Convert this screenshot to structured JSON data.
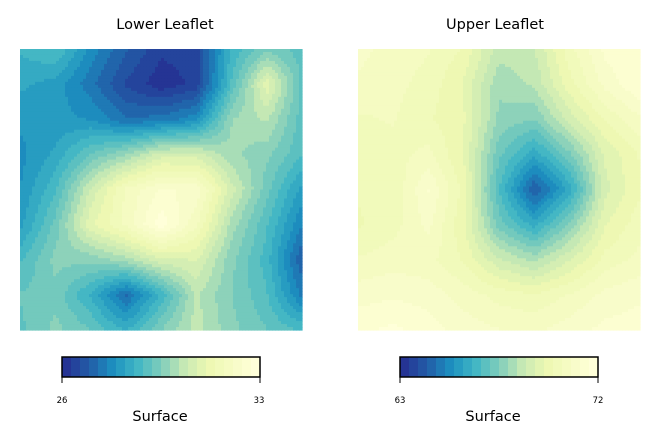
{
  "chart_data": [
    {
      "type": "heatmap",
      "title": "Lower Leaflet",
      "colorbar": {
        "label": "Surface",
        "min": 26,
        "max": 33,
        "tick_labels": [
          "26",
          "33"
        ]
      },
      "colormap": "YlGnBu_r",
      "grid": false,
      "axes_visible": false,
      "z": [
        [
          28.6,
          28.9,
          27.8,
          27.0,
          26.4,
          26.5,
          28.6,
          29.4,
          29.0
        ],
        [
          28.3,
          28.1,
          27.4,
          26.6,
          26.1,
          26.4,
          28.9,
          31.0,
          29.1
        ],
        [
          28.0,
          28.0,
          27.9,
          27.3,
          27.4,
          27.8,
          29.8,
          30.2,
          29.0
        ],
        [
          27.8,
          28.3,
          29.2,
          29.8,
          30.6,
          30.6,
          29.9,
          29.6,
          28.9
        ],
        [
          27.9,
          28.8,
          30.5,
          31.8,
          32.4,
          32.3,
          30.6,
          29.3,
          28.1
        ],
        [
          28.1,
          29.3,
          31.0,
          31.8,
          32.9,
          31.8,
          30.0,
          28.9,
          27.6
        ],
        [
          28.8,
          29.6,
          29.6,
          30.0,
          30.7,
          30.8,
          29.6,
          28.7,
          27.0
        ],
        [
          29.2,
          29.4,
          28.5,
          27.2,
          28.6,
          30.2,
          29.5,
          28.9,
          27.5
        ],
        [
          29.1,
          29.6,
          29.2,
          28.5,
          29.5,
          30.3,
          29.6,
          29.2,
          28.8
        ]
      ]
    },
    {
      "type": "heatmap",
      "title": "Upper Leaflet",
      "colorbar": {
        "label": "Surface",
        "min": 63,
        "max": 72,
        "tick_labels": [
          "63",
          "72"
        ]
      },
      "colormap": "YlGnBu_r",
      "grid": false,
      "axes_visible": false,
      "z": [
        [
          70.9,
          70.6,
          70.4,
          69.9,
          68.5,
          68.7,
          70.2,
          71.3,
          71.6
        ],
        [
          70.7,
          70.5,
          70.2,
          69.5,
          68.0,
          68.4,
          69.8,
          70.9,
          71.6
        ],
        [
          70.3,
          70.4,
          70.0,
          69.6,
          67.8,
          67.5,
          68.9,
          70.0,
          70.7
        ],
        [
          70.2,
          70.2,
          70.5,
          69.5,
          67.2,
          66.0,
          67.4,
          69.2,
          70.0
        ],
        [
          70.0,
          70.0,
          71.2,
          69.8,
          66.7,
          64.2,
          66.0,
          69.0,
          69.9
        ],
        [
          69.9,
          70.2,
          70.9,
          69.6,
          67.3,
          66.1,
          67.6,
          69.5,
          70.2
        ],
        [
          70.4,
          70.6,
          70.5,
          69.9,
          68.8,
          68.2,
          69.1,
          70.1,
          70.5
        ],
        [
          71.0,
          71.1,
          71.0,
          70.6,
          70.2,
          70.0,
          70.4,
          70.9,
          71.1
        ],
        [
          71.5,
          71.7,
          71.4,
          71.0,
          70.8,
          70.7,
          71.0,
          71.3,
          71.4
        ]
      ]
    }
  ]
}
